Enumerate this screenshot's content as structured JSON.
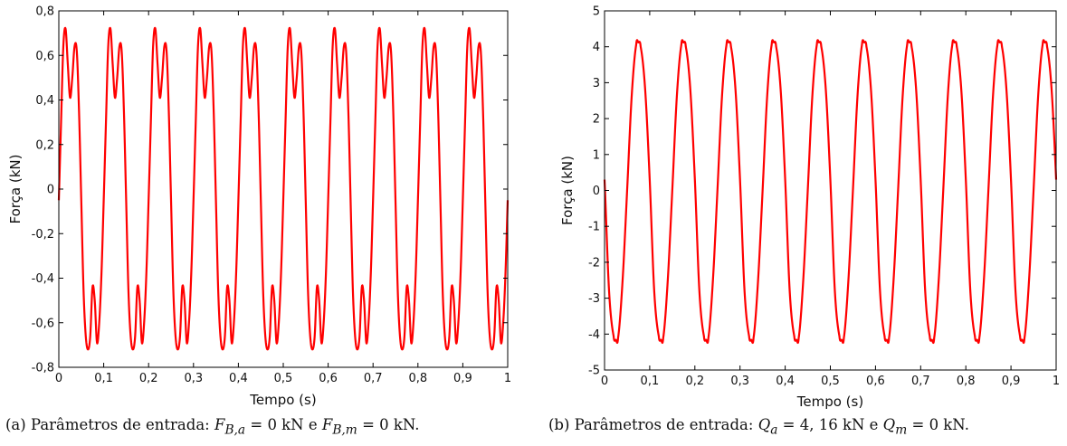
{
  "chart_data": [
    {
      "id": "a",
      "type": "line",
      "xlabel": "Tempo (s)",
      "ylabel": "Força (kN)",
      "xlim": [
        0,
        1
      ],
      "ylim": [
        -0.8,
        0.8
      ],
      "xticks": [
        0,
        0.1,
        0.2,
        0.3,
        0.4,
        0.5,
        0.6,
        0.7,
        0.8,
        0.9,
        1
      ],
      "xtick_labels": [
        "0",
        "0,1",
        "0,2",
        "0,3",
        "0,4",
        "0,5",
        "0,6",
        "0,7",
        "0,8",
        "0,9",
        "1"
      ],
      "yticks": [
        -0.8,
        -0.6,
        -0.4,
        -0.2,
        0,
        0.2,
        0.4,
        0.6,
        0.8
      ],
      "ytick_labels": [
        "-0,8",
        "-0,6",
        "-0,4",
        "-0,2",
        "0",
        "0,2",
        "0,4",
        "0,6",
        "0,8"
      ],
      "grid": false,
      "color": "#ff0000",
      "series": [
        {
          "period": 0.1,
          "x": [
            0,
            0.005,
            0.01,
            0.015,
            0.02,
            0.025,
            0.03,
            0.035,
            0.04,
            0.045,
            0.05,
            0.055,
            0.06,
            0.065,
            0.07,
            0.075,
            0.08,
            0.085,
            0.09,
            0.095,
            0.1
          ],
          "values": [
            -0.05,
            0.3,
            0.64,
            0.72,
            0.56,
            0.41,
            0.5,
            0.64,
            0.62,
            0.35,
            -0.05,
            -0.45,
            -0.66,
            -0.72,
            -0.66,
            -0.44,
            -0.5,
            -0.69,
            -0.6,
            -0.38,
            -0.05
          ]
        }
      ],
      "caption": {
        "prefix": "(a) Parâmetros de entrada: ",
        "sym1": "F",
        "sub1": "B,a",
        "mid": " = 0 kN e ",
        "sym2": "F",
        "sub2": "B,m",
        "suffix": " = 0 kN."
      }
    },
    {
      "id": "b",
      "type": "line",
      "xlabel": "Tempo (s)",
      "ylabel": "Força (kN)",
      "xlim": [
        0,
        1
      ],
      "ylim": [
        -5,
        5
      ],
      "xticks": [
        0,
        0.1,
        0.2,
        0.3,
        0.4,
        0.5,
        0.6,
        0.7,
        0.8,
        0.9,
        1
      ],
      "xtick_labels": [
        "0",
        "0,1",
        "0,2",
        "0,3",
        "0,4",
        "0,5",
        "0,6",
        "0,7",
        "0,8",
        "0,9",
        "1"
      ],
      "yticks": [
        -5,
        -4,
        -3,
        -2,
        -1,
        0,
        1,
        2,
        3,
        4,
        5
      ],
      "ytick_labels": [
        "-5",
        "-4",
        "-3",
        "-2",
        "-1",
        "0",
        "1",
        "2",
        "3",
        "4",
        "5"
      ],
      "grid": false,
      "color": "#ff0000",
      "series": [
        {
          "period": 0.1,
          "x": [
            0,
            0.01,
            0.02,
            0.025,
            0.03,
            0.04,
            0.05,
            0.06,
            0.07,
            0.075,
            0.08,
            0.09,
            0.1
          ],
          "values": [
            0.3,
            -2.8,
            -4.05,
            -4.16,
            -4.1,
            -2.5,
            0,
            2.6,
            4.05,
            4.12,
            4.0,
            2.8,
            0.3
          ]
        }
      ],
      "caption": {
        "prefix": "(b) Parâmetros de entrada: ",
        "sym1": "Q",
        "sub1": "a",
        "mid": " = 4, 16 kN e ",
        "sym2": "Q",
        "sub2": "m",
        "suffix": " = 0 kN."
      }
    }
  ]
}
